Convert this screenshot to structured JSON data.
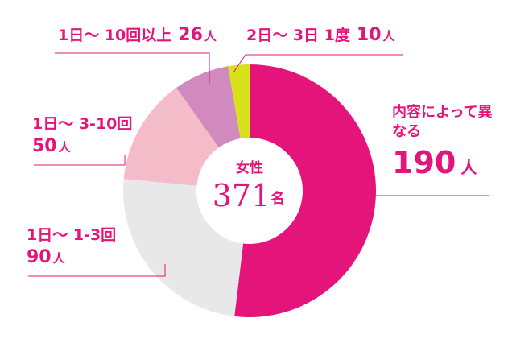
{
  "chart_data": {
    "type": "donut",
    "categories": [
      "内容によって異なる",
      "1日～ 1-3回",
      "1日～ 3-10回",
      "1日～ 10回以上",
      "2日～ 3日 1度"
    ],
    "values": [
      190,
      90,
      50,
      26,
      10
    ],
    "colors": [
      "#e5147a",
      "#e8e8e8",
      "#f4bcc8",
      "#d08abd",
      "#d8e21a"
    ],
    "unit": "人",
    "center_label": "女性",
    "total": 371,
    "total_unit": "名"
  }
}
